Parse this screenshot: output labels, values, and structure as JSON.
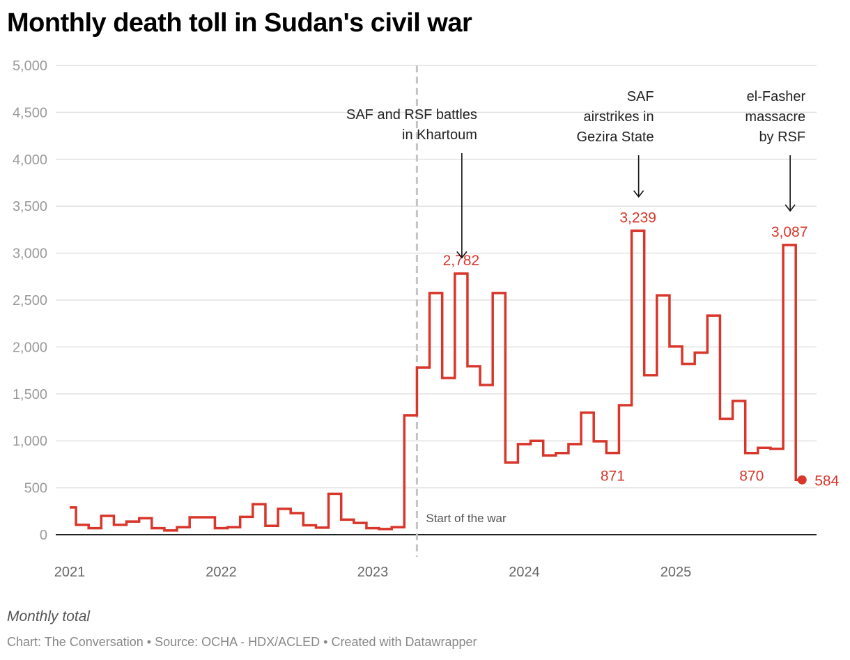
{
  "title": "Monthly death toll in Sudan's civil war",
  "notes": "Monthly total",
  "footer": "Chart: The Conversation • Source: OCHA - HDX/ACLED • Created with Datawrapper",
  "colors": {
    "line": "#d8362b",
    "grid": "#e2e2e2",
    "baseline": "#222222",
    "war_line": "#c4c4c4"
  },
  "chart_data": {
    "type": "line",
    "style": "step",
    "title": "Monthly death toll in Sudan's civil war",
    "xlabel": "",
    "ylabel": "",
    "ylim": [
      0,
      5000
    ],
    "yticks": [
      0,
      500,
      1000,
      1500,
      2000,
      2500,
      3000,
      3500,
      4000,
      4500,
      5000
    ],
    "ytick_labels": [
      "0",
      "500",
      "1,000",
      "1,500",
      "2,000",
      "2,500",
      "3,000",
      "3,500",
      "4,000",
      "4,500",
      "5,000"
    ],
    "xticks": [
      "2021",
      "2022",
      "2023",
      "2024",
      "2025"
    ],
    "grid": true,
    "legend": "none",
    "start_month": "2021-01",
    "series": [
      {
        "name": "Monthly total",
        "x": [
          "2021-01",
          "2021-02",
          "2021-03",
          "2021-04",
          "2021-05",
          "2021-06",
          "2021-07",
          "2021-08",
          "2021-09",
          "2021-10",
          "2021-11",
          "2021-12",
          "2022-01",
          "2022-02",
          "2022-03",
          "2022-04",
          "2022-05",
          "2022-06",
          "2022-07",
          "2022-08",
          "2022-09",
          "2022-10",
          "2022-11",
          "2022-12",
          "2023-01",
          "2023-02",
          "2023-03",
          "2023-04",
          "2023-05",
          "2023-06",
          "2023-07",
          "2023-08",
          "2023-09",
          "2023-10",
          "2023-11",
          "2023-12",
          "2024-01",
          "2024-02",
          "2024-03",
          "2024-04",
          "2024-05",
          "2024-06",
          "2024-07",
          "2024-08",
          "2024-09",
          "2024-10",
          "2024-11",
          "2024-12",
          "2025-01",
          "2025-02",
          "2025-03",
          "2025-04",
          "2025-05",
          "2025-06",
          "2025-07",
          "2025-08",
          "2025-09",
          "2025-10",
          "2025-11"
        ],
        "values": [
          290,
          105,
          70,
          200,
          105,
          140,
          175,
          70,
          45,
          80,
          185,
          185,
          70,
          80,
          190,
          325,
          95,
          275,
          230,
          100,
          75,
          435,
          160,
          125,
          70,
          60,
          80,
          1270,
          1780,
          2575,
          1670,
          2782,
          1795,
          1595,
          2575,
          770,
          965,
          1000,
          845,
          870,
          965,
          1300,
          995,
          871,
          1380,
          3239,
          1700,
          2550,
          2005,
          1820,
          1940,
          2335,
          1235,
          1425,
          870,
          925,
          915,
          3087,
          584
        ]
      }
    ],
    "value_labels": [
      {
        "month": "2023-08",
        "text": "2,782",
        "position": "above"
      },
      {
        "month": "2024-08",
        "text": "871",
        "position": "below"
      },
      {
        "month": "2024-10",
        "text": "3,239",
        "position": "above"
      },
      {
        "month": "2025-07",
        "text": "870",
        "position": "below"
      },
      {
        "month": "2025-10",
        "text": "3,087",
        "position": "above"
      },
      {
        "month": "2025-11",
        "text": "584",
        "position": "right"
      }
    ],
    "annotations": [
      {
        "lines": [
          "SAF and RSF battles",
          "in Khartoum"
        ],
        "month": "2023-08",
        "arrow_to": 2950
      },
      {
        "lines": [
          "SAF",
          "airstrikes in",
          "Gezira State"
        ],
        "month": "2024-10",
        "arrow_to": 3600
      },
      {
        "lines": [
          "el-Fasher",
          "massacre",
          "by RSF"
        ],
        "month": "2025-10",
        "arrow_to": 3450
      }
    ],
    "reference_line": {
      "month_fraction": "2023-04-15",
      "label": "Start of the war"
    }
  }
}
